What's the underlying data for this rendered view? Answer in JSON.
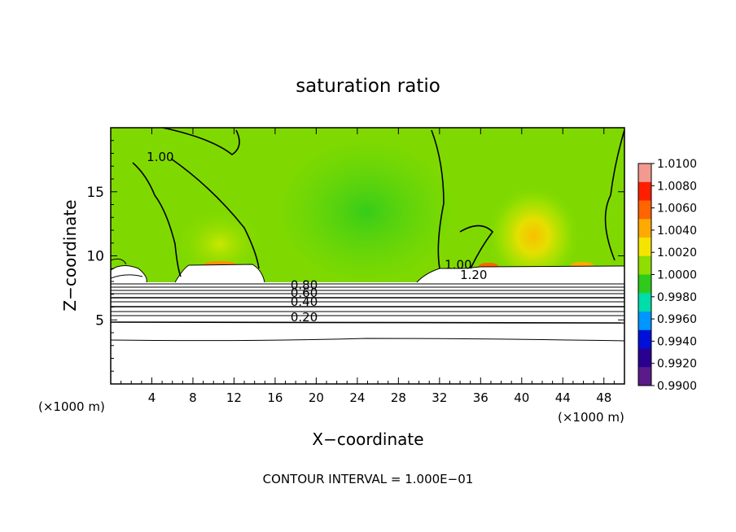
{
  "chart_data": {
    "type": "heatmap",
    "title": "saturation ratio",
    "xlabel": "X−coordinate",
    "ylabel": "Z−coordinate",
    "x_unit_left": "(×1000 m)",
    "x_unit_right": "(×1000 m)",
    "xlim": [
      0,
      50
    ],
    "ylim": [
      0,
      20
    ],
    "xticks": [
      4,
      8,
      12,
      16,
      20,
      24,
      28,
      32,
      36,
      40,
      44,
      48
    ],
    "yticks": [
      5,
      10,
      15
    ],
    "grid": false,
    "colorbar": {
      "labels": [
        "1.0100",
        "1.0080",
        "1.0060",
        "1.0040",
        "1.0020",
        "1.0000",
        "0.9980",
        "0.9960",
        "0.9940",
        "0.9920",
        "0.9900"
      ],
      "colors": [
        "#f29a90",
        "#ff1f00",
        "#ff6400",
        "#ffaa00",
        "#f4e400",
        "#90dd00",
        "#2ecb1c",
        "#00dcaa",
        "#0096ff",
        "#0010d8",
        "#2a0090",
        "#5a1a8a"
      ]
    },
    "contour_labels": [
      {
        "text": "1.00",
        "x": 3.5,
        "y": 17.4
      },
      {
        "text": "1.00",
        "x": 32.5,
        "y": 9.0
      },
      {
        "text": "1.20",
        "x": 34.0,
        "y": 8.2
      },
      {
        "text": "0.80",
        "x": 17.5,
        "y": 7.4
      },
      {
        "text": "0.60",
        "x": 17.5,
        "y": 6.8
      },
      {
        "text": "0.40",
        "x": 17.5,
        "y": 6.1
      },
      {
        "text": "0.20",
        "x": 17.5,
        "y": 4.9
      }
    ],
    "footer": "CONTOUR INTERVAL = 1.000E−01"
  }
}
